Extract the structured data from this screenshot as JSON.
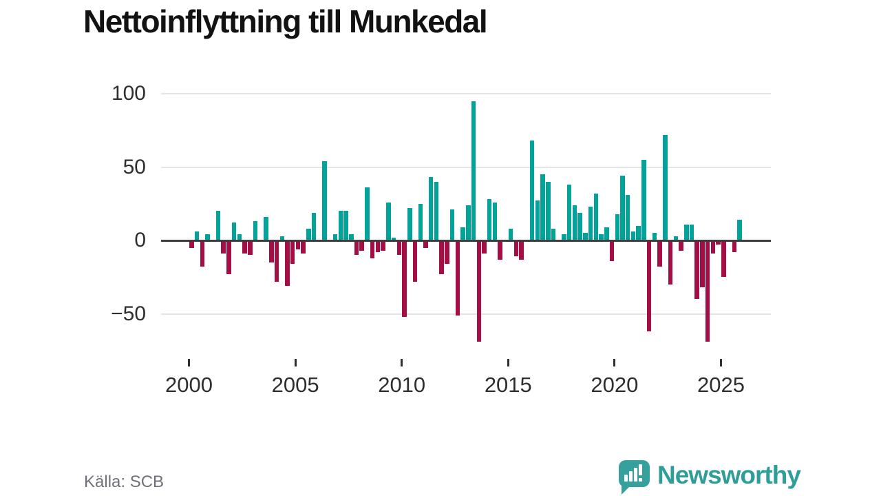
{
  "title": "Nettoinflyttning till Munkedal",
  "source": "Källa: SCB",
  "branding": {
    "name": "Newsworthy",
    "logo_icon": "speech-bubble-bar-chart"
  },
  "colors": {
    "positive": "#00a29a",
    "negative": "#a50e45",
    "gridline": "#e4e4e4",
    "zero_line": "#3d3d3d",
    "axis_text": "#2e2e2e",
    "brand_teal": "#2f9e9b"
  },
  "chart_data": {
    "type": "bar",
    "title": "Nettoinflyttning till Munkedal",
    "frequency": "quarterly",
    "x_start": "2000-Q1",
    "x_end": "2025-Q4",
    "x_tick_labels": [
      "2000",
      "2005",
      "2010",
      "2015",
      "2020",
      "2025"
    ],
    "y_ticks": [
      100,
      50,
      0,
      -50
    ],
    "y_tick_labels": [
      "100",
      "50",
      "0",
      "−50"
    ],
    "ylim": [
      -75,
      105
    ],
    "grid": "horizontal",
    "legend": "none",
    "series_name": "Nettoinflyttning per kvartal",
    "values": [
      -5,
      6,
      -18,
      4,
      0,
      20,
      -9,
      -23,
      12,
      4,
      -9,
      -10,
      13,
      0,
      16,
      -15,
      -28,
      3,
      -31,
      -16,
      -6,
      -9,
      8,
      19,
      0,
      54,
      0,
      4,
      20,
      20,
      4,
      -10,
      -7,
      36,
      -12,
      -8,
      -7,
      26,
      2,
      -10,
      -52,
      22,
      -28,
      25,
      -5,
      43,
      40,
      -23,
      -16,
      21,
      -51,
      9,
      24,
      95,
      -69,
      -9,
      28,
      26,
      -13,
      0,
      8,
      -11,
      -13,
      0,
      68,
      27,
      45,
      40,
      8,
      0,
      4,
      38,
      24,
      19,
      5,
      23,
      32,
      4,
      9,
      -14,
      18,
      44,
      31,
      6,
      10,
      55,
      -62,
      5,
      -18,
      72,
      -30,
      3,
      -7,
      11,
      11,
      -40,
      -32,
      -69,
      -9,
      -3,
      -25,
      0,
      -8,
      14
    ]
  }
}
